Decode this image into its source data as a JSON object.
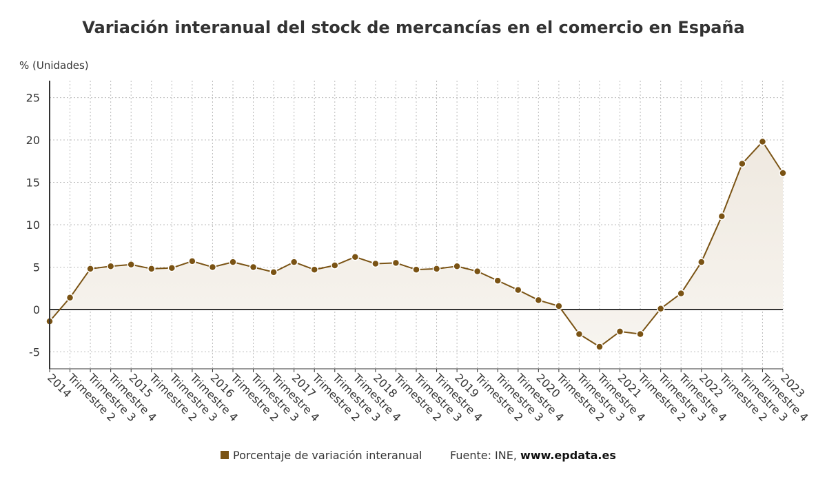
{
  "chart_data": {
    "type": "line",
    "title": "Variación interanual del stock de mercancías en el comercio en España",
    "y_axis_label": "% (Unidades)",
    "categories": [
      "2014",
      "Trimestre 2",
      "Trimestre 3",
      "Trimestre 4",
      "2015",
      "Trimestre 2",
      "Trimestre 3",
      "Trimestre 4",
      "2016",
      "Trimestre 2",
      "Trimestre 3",
      "Trimestre 4",
      "2017",
      "Trimestre 2",
      "Trimestre 3",
      "Trimestre 4",
      "2018",
      "Trimestre 2",
      "Trimestre 3",
      "Trimestre 4",
      "2019",
      "Trimestre 2",
      "Trimestre 3",
      "Trimestre 4",
      "2020",
      "Trimestre 2",
      "Trimestre 3",
      "Trimestre 4",
      "2021",
      "Trimestre 2",
      "Trimestre 3",
      "Trimestre 4",
      "2022",
      "Trimestre 2",
      "Trimestre 3",
      "Trimestre 4",
      "2023"
    ],
    "series": [
      {
        "name": "Porcentaje de variación interanual",
        "color": "#7a5314",
        "values": [
          -1.4,
          1.4,
          4.8,
          5.1,
          5.3,
          4.8,
          4.9,
          5.7,
          5.0,
          5.6,
          5.0,
          4.4,
          5.6,
          4.7,
          5.2,
          6.2,
          5.4,
          5.5,
          4.7,
          4.8,
          5.1,
          4.5,
          3.4,
          2.3,
          1.1,
          0.4,
          -2.9,
          -4.4,
          -2.6,
          -2.9,
          0.1,
          1.9,
          5.6,
          11.0,
          17.2,
          19.8,
          16.1
        ]
      }
    ],
    "ylim": [
      -7,
      27
    ],
    "yticks": [
      -5,
      0,
      5,
      10,
      15,
      20,
      25
    ],
    "grid": true,
    "source": "Fuente: INE,",
    "source_site": "www.epdata.es"
  }
}
